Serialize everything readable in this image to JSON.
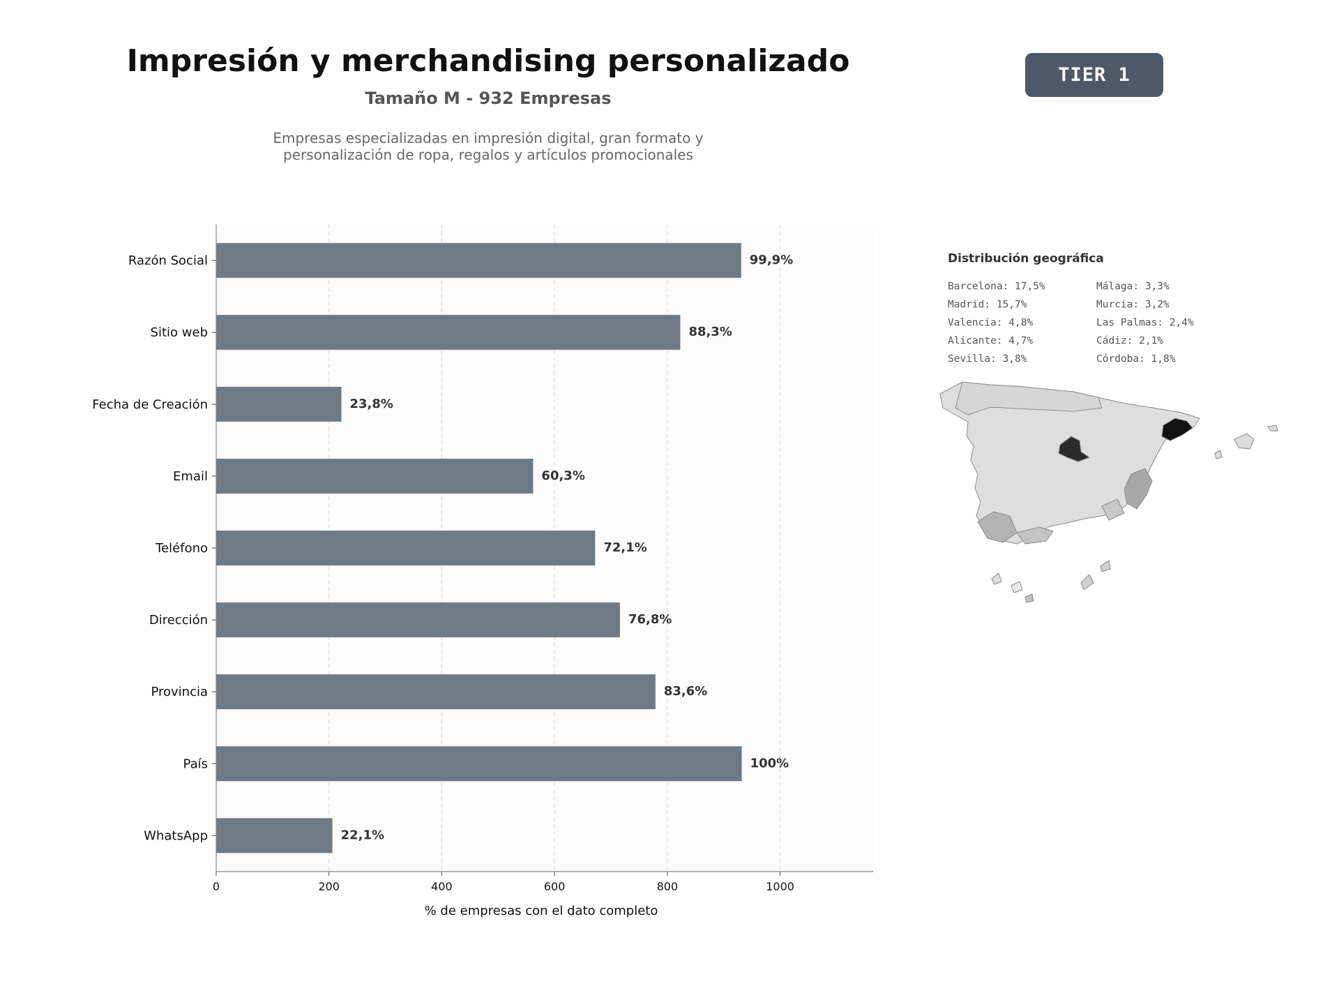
{
  "header": {
    "title": "Impresión y merchandising personalizado",
    "subtitle": "Tamaño M - 932 Empresas",
    "description_lines": [
      "Empresas especializadas en impresión digital, gran formato y",
      "personalización de ropa, regalos y artículos promocionales"
    ],
    "tier_badge": "TIER 1"
  },
  "chart_data": {
    "type": "bar",
    "orientation": "horizontal",
    "categories": [
      "Razón Social",
      "Sitio web",
      "Fecha de Creación",
      "Email",
      "Teléfono",
      "Dirección",
      "Provincia",
      "País",
      "WhatsApp"
    ],
    "values": [
      931,
      823,
      222,
      562,
      672,
      716,
      779,
      932,
      206
    ],
    "data_labels": [
      "99,9%",
      "88,3%",
      "23,8%",
      "60,3%",
      "72,1%",
      "76,8%",
      "83,6%",
      "100%",
      "22,1%"
    ],
    "xlabel": "% de empresas con el dato completo",
    "ylabel": "",
    "xlim": [
      0,
      1165
    ],
    "xticks": [
      0,
      200,
      400,
      600,
      800,
      1000
    ],
    "grid": "x, dashed",
    "bar_color": "#6e7a84"
  },
  "geo": {
    "title": "Distribución geográfica",
    "col1": [
      "Barcelona: 17,5%",
      "Madrid: 15,7%",
      "Valencia: 4,8%",
      "Alicante: 4,7%",
      "Sevilla: 3,8%"
    ],
    "col2": [
      "Málaga: 3,3%",
      "Murcia: 3,2%",
      "Las Palmas: 2,4%",
      "Cádiz: 2,1%",
      "Córdoba: 1,8%"
    ]
  }
}
